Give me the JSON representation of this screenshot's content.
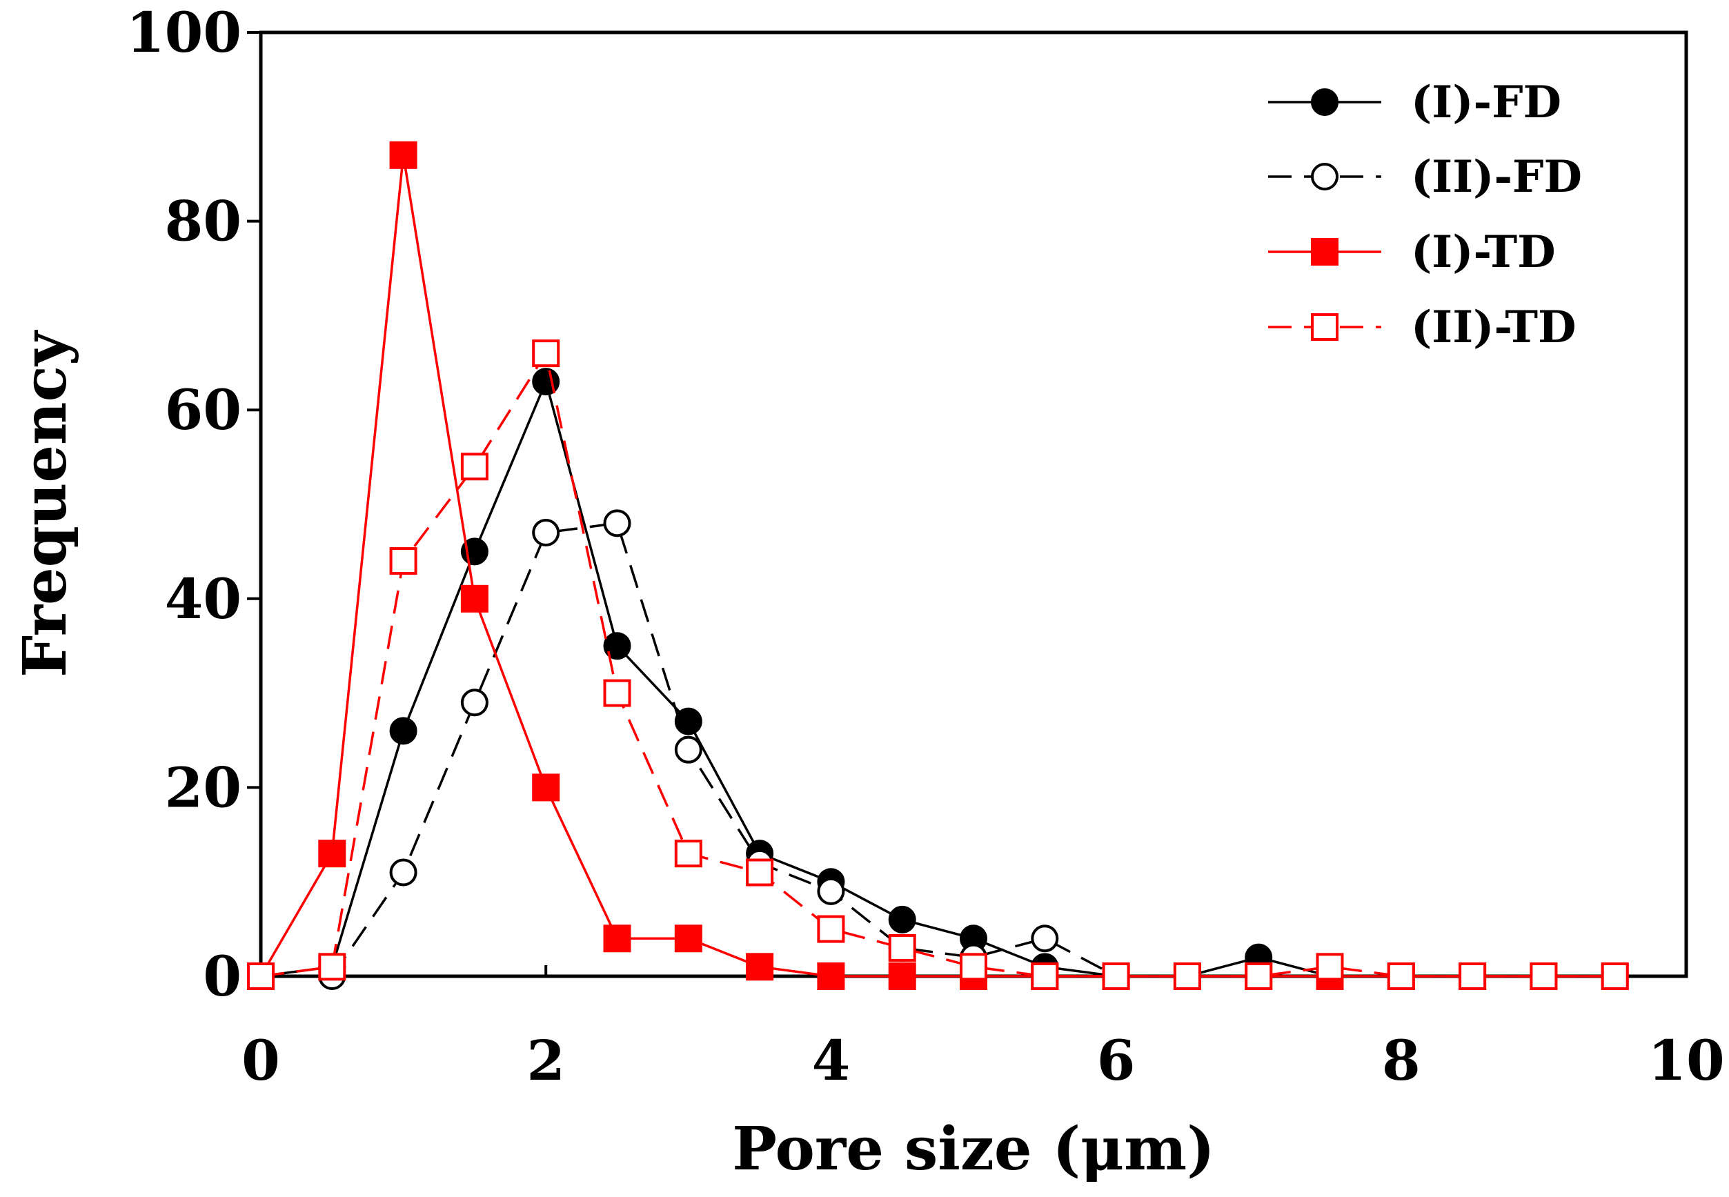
{
  "chart_data": {
    "type": "line",
    "title": "",
    "xlabel": "Pore size (μm)",
    "ylabel": "Frequency",
    "xlim": [
      0,
      10
    ],
    "ylim": [
      0,
      100
    ],
    "xticks": [
      "0",
      "2",
      "4",
      "6",
      "8",
      "10"
    ],
    "yticks": [
      "0",
      "20",
      "40",
      "60",
      "80",
      "100"
    ],
    "grid": false,
    "legend_position": "top-right",
    "series": [
      {
        "name": "(I)-FD",
        "color": "#000000",
        "line": "solid",
        "marker": "filled-circle",
        "x": [
          0,
          0.5,
          1,
          1.5,
          2,
          2.5,
          3,
          3.5,
          4,
          4.5,
          5,
          5.5,
          6,
          6.5,
          7,
          7.5,
          8,
          8.5,
          9,
          9.5
        ],
        "y": [
          0,
          1,
          26,
          45,
          63,
          35,
          27,
          13,
          10,
          6,
          4,
          1,
          0,
          0,
          2,
          0,
          0,
          0,
          0,
          0
        ]
      },
      {
        "name": "(II)-FD",
        "color": "#000000",
        "line": "dashed",
        "marker": "open-circle",
        "x": [
          0,
          0.5,
          1,
          1.5,
          2,
          2.5,
          3,
          3.5,
          4,
          4.5,
          5,
          5.5,
          6,
          6.5,
          7,
          7.5,
          8,
          8.5,
          9,
          9.5
        ],
        "y": [
          0,
          0,
          11,
          29,
          47,
          48,
          24,
          12,
          9,
          3,
          2,
          4,
          0,
          0,
          0,
          0,
          0,
          0,
          0,
          0
        ]
      },
      {
        "name": "(I)-TD",
        "color": "#ff0000",
        "line": "solid",
        "marker": "filled-square",
        "x": [
          0,
          0.5,
          1,
          1.5,
          2,
          2.5,
          3,
          3.5,
          4,
          4.5,
          5,
          5.5,
          6,
          6.5,
          7,
          7.5,
          8,
          8.5,
          9,
          9.5
        ],
        "y": [
          0,
          13,
          87,
          40,
          20,
          4,
          4,
          1,
          0,
          0,
          0,
          0,
          0,
          0,
          0,
          0,
          0,
          0,
          0,
          0
        ]
      },
      {
        "name": "(II)-TD",
        "color": "#ff0000",
        "line": "dashed",
        "marker": "open-square",
        "x": [
          0,
          0.5,
          1,
          1.5,
          2,
          2.5,
          3,
          3.5,
          4,
          4.5,
          5,
          5.5,
          6,
          6.5,
          7,
          7.5,
          8,
          8.5,
          9,
          9.5
        ],
        "y": [
          0,
          1,
          44,
          54,
          66,
          30,
          13,
          11,
          5,
          3,
          1,
          0,
          0,
          0,
          0,
          1,
          0,
          0,
          0,
          0
        ]
      }
    ]
  }
}
